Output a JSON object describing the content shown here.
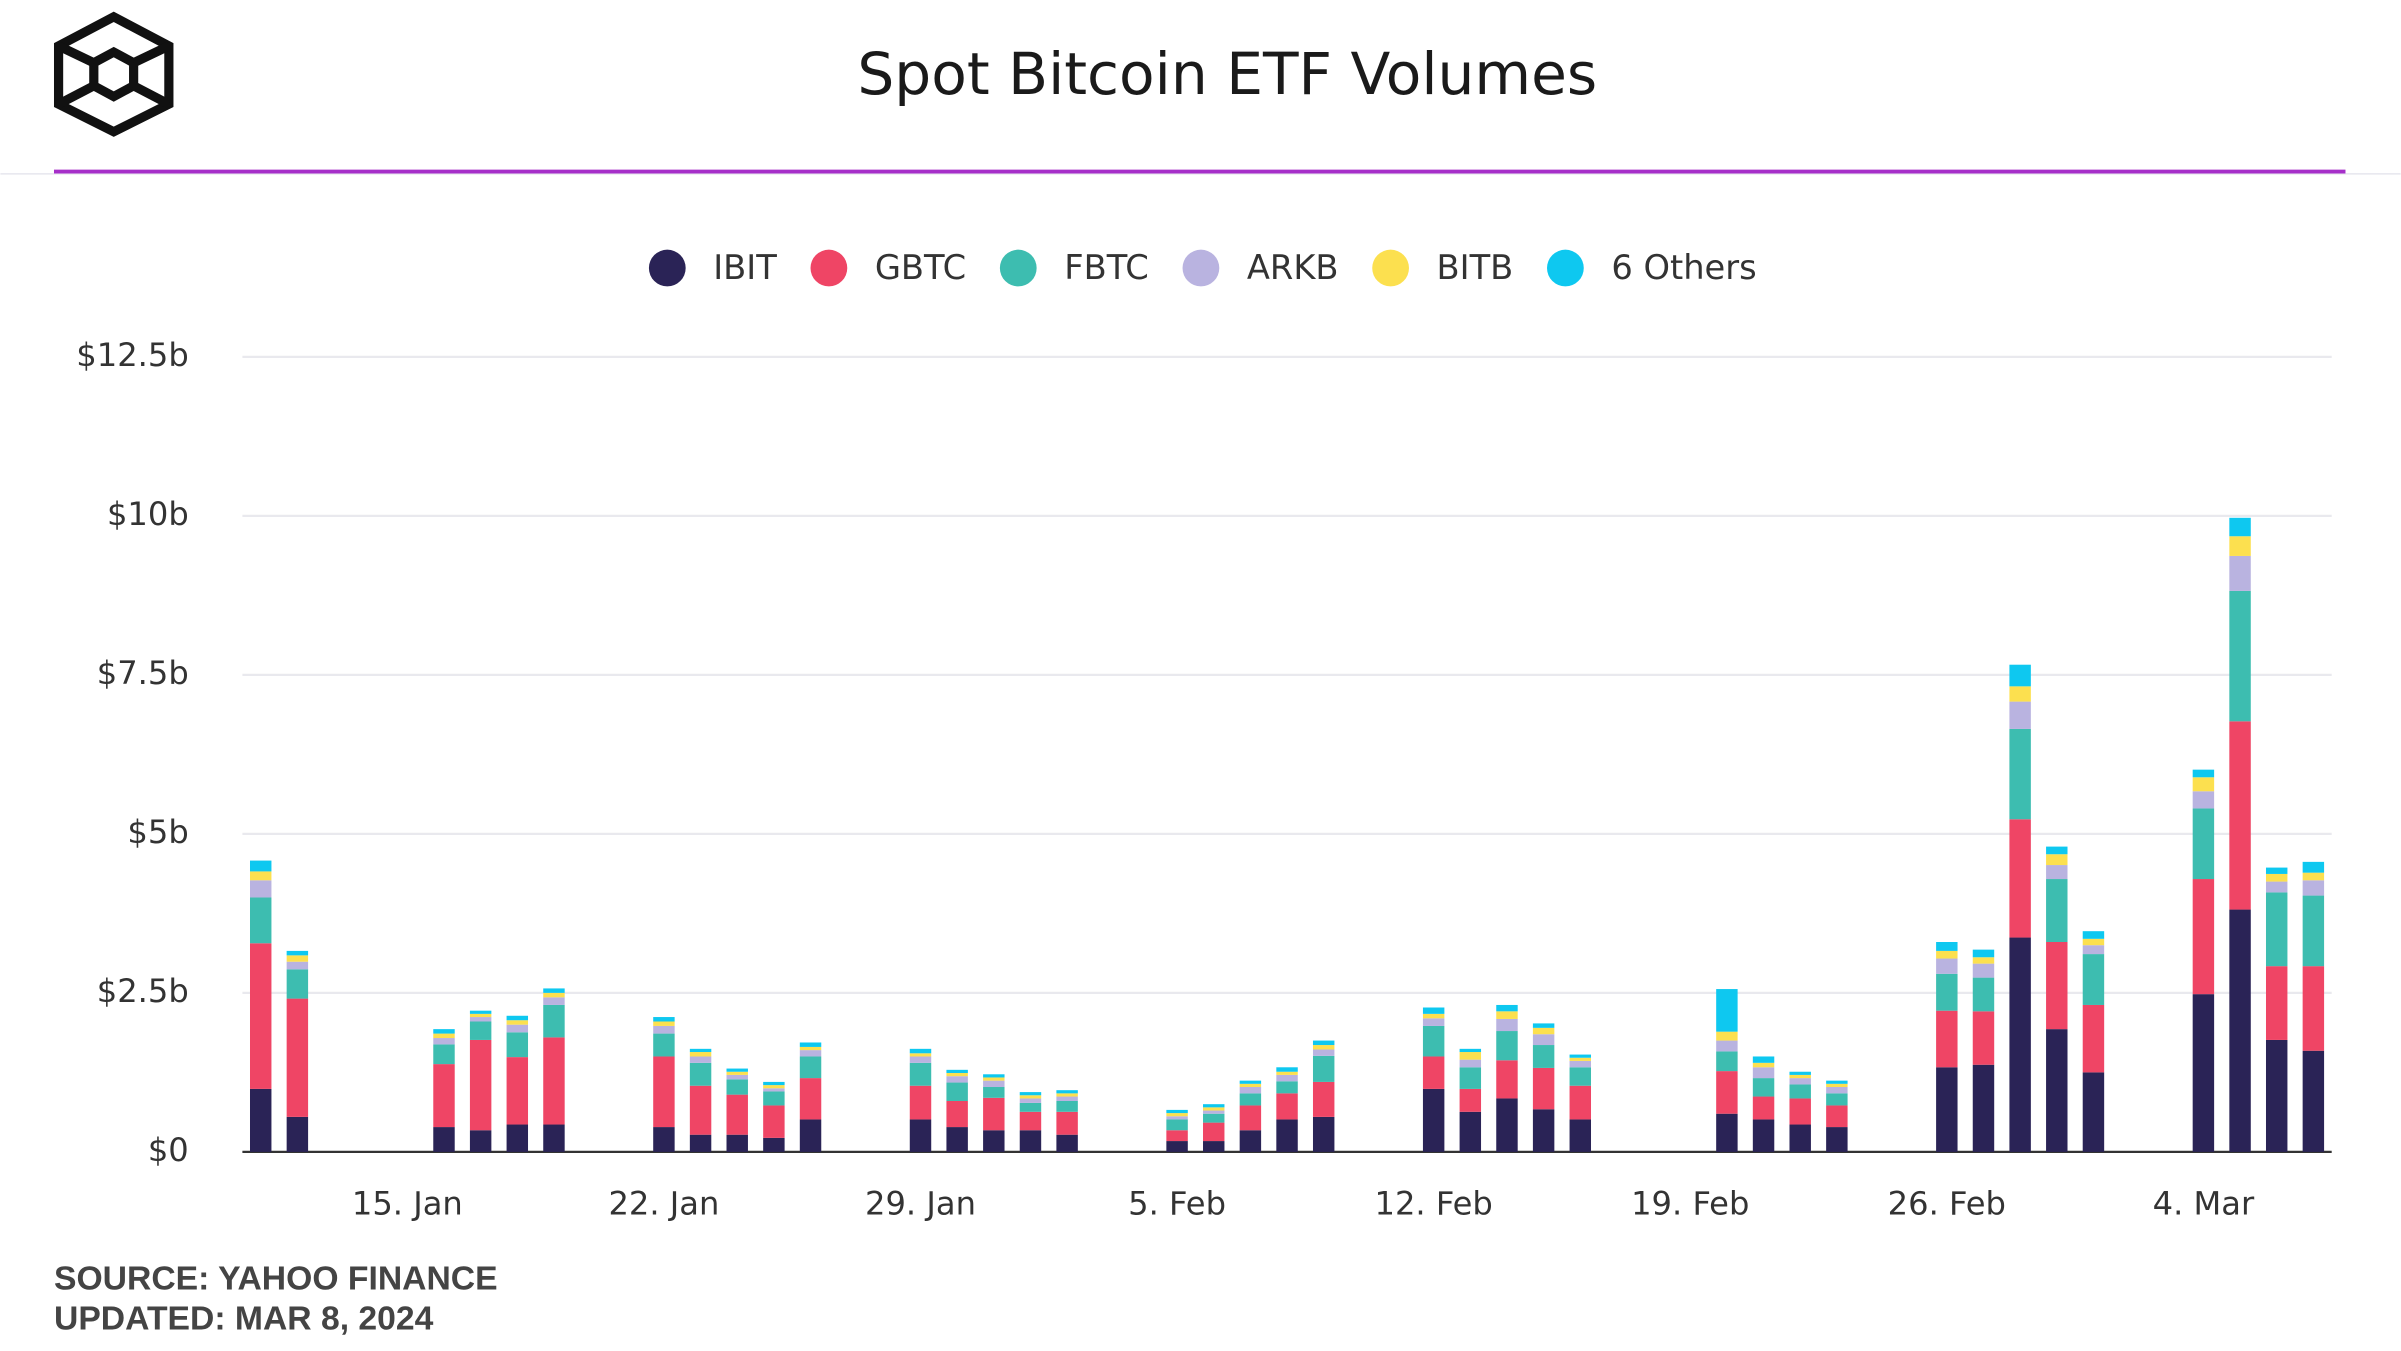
{
  "chart_data": {
    "type": "stacked_bar",
    "title": "Spot Bitcoin ETF Volumes",
    "source": "SOURCE: YAHOO FINANCE",
    "updated": "UPDATED: MAR 8, 2024",
    "categories": [
      null,
      null,
      null,
      null,
      "15. Jan",
      null,
      null,
      null,
      null,
      null,
      null,
      "22. Jan",
      null,
      null,
      null,
      null,
      null,
      null,
      "29. Jan",
      null,
      null,
      null,
      null,
      null,
      null,
      "5. Feb",
      null,
      null,
      null,
      null,
      null,
      null,
      "12. Feb",
      null,
      null,
      null,
      null,
      null,
      null,
      "19. Feb",
      null,
      null,
      null,
      null,
      null,
      null,
      "26. Feb",
      null,
      null,
      null,
      null,
      null,
      null,
      "4. Mar",
      null,
      null,
      null
    ],
    "series": [
      {
        "name": "IBIT",
        "color": "#2a2356",
        "values": [
          0.99,
          0.55,
          null,
          null,
          null,
          0.39,
          0.34,
          0.43,
          0.43,
          null,
          null,
          0.39,
          0.27,
          0.27,
          0.22,
          0.51,
          null,
          null,
          0.51,
          0.39,
          0.34,
          0.34,
          0.27,
          null,
          null,
          0.17,
          0.17,
          0.34,
          0.51,
          0.55,
          null,
          null,
          0.99,
          0.63,
          0.84,
          0.67,
          0.51,
          null,
          null,
          null,
          0.6,
          0.51,
          0.43,
          0.39,
          null,
          null,
          1.33,
          1.37,
          3.37,
          1.93,
          1.25,
          null,
          null,
          2.48,
          3.81,
          1.76,
          1.59
        ]
      },
      {
        "name": "GBTC",
        "color": "#ef4565",
        "values": [
          2.29,
          1.86,
          null,
          null,
          null,
          0.99,
          1.42,
          1.06,
          1.37,
          null,
          null,
          1.11,
          0.77,
          0.63,
          0.51,
          0.65,
          null,
          null,
          0.53,
          0.41,
          0.51,
          0.29,
          0.36,
          null,
          null,
          0.17,
          0.29,
          0.39,
          0.41,
          0.55,
          null,
          null,
          0.51,
          0.36,
          0.6,
          0.65,
          0.53,
          null,
          null,
          null,
          0.67,
          0.36,
          0.41,
          0.34,
          null,
          null,
          0.89,
          0.84,
          1.86,
          1.37,
          1.06,
          null,
          null,
          1.81,
          2.96,
          1.16,
          1.33
        ]
      },
      {
        "name": "FBTC",
        "color": "#3dbdb0",
        "values": [
          0.72,
          0.46,
          null,
          null,
          null,
          0.31,
          0.29,
          0.39,
          0.51,
          null,
          null,
          0.36,
          0.36,
          0.24,
          0.22,
          0.34,
          null,
          null,
          0.36,
          0.29,
          0.17,
          0.14,
          0.17,
          null,
          null,
          0.17,
          0.14,
          0.19,
          0.19,
          0.41,
          null,
          null,
          0.48,
          0.34,
          0.46,
          0.36,
          0.29,
          null,
          null,
          null,
          0.31,
          0.29,
          0.22,
          0.19,
          null,
          null,
          0.58,
          0.53,
          1.42,
          0.99,
          0.8,
          null,
          null,
          1.11,
          2.05,
          1.16,
          1.11
        ]
      },
      {
        "name": "ARKB",
        "color": "#b9b3e0",
        "values": [
          0.27,
          0.12,
          null,
          null,
          null,
          0.1,
          0.07,
          0.12,
          0.12,
          null,
          null,
          0.12,
          0.1,
          0.07,
          0.05,
          0.1,
          null,
          null,
          0.1,
          0.1,
          0.1,
          0.07,
          0.07,
          null,
          null,
          0.05,
          0.05,
          0.1,
          0.1,
          0.1,
          null,
          null,
          0.12,
          0.12,
          0.19,
          0.17,
          0.1,
          null,
          null,
          null,
          0.17,
          0.17,
          0.1,
          0.1,
          null,
          null,
          0.24,
          0.22,
          0.43,
          0.22,
          0.14,
          null,
          null,
          0.27,
          0.55,
          0.17,
          0.24
        ]
      },
      {
        "name": "BITB",
        "color": "#fce04f",
        "values": [
          0.14,
          0.1,
          null,
          null,
          null,
          0.07,
          0.05,
          0.07,
          0.07,
          null,
          null,
          0.07,
          0.07,
          0.05,
          0.05,
          0.05,
          null,
          null,
          0.05,
          0.05,
          0.05,
          0.05,
          0.05,
          null,
          null,
          0.05,
          0.05,
          0.05,
          0.05,
          0.07,
          null,
          null,
          0.07,
          0.12,
          0.12,
          0.1,
          0.05,
          null,
          null,
          null,
          0.14,
          0.07,
          0.05,
          0.05,
          null,
          null,
          0.12,
          0.1,
          0.24,
          0.17,
          0.1,
          null,
          null,
          0.22,
          0.31,
          0.12,
          0.12
        ]
      },
      {
        "name": "6 Others",
        "color": "#0ec8f0",
        "values": [
          0.17,
          0.07,
          null,
          null,
          null,
          0.07,
          0.05,
          0.07,
          0.07,
          null,
          null,
          0.07,
          0.05,
          0.05,
          0.05,
          0.07,
          null,
          null,
          0.07,
          0.05,
          0.05,
          0.05,
          0.05,
          null,
          null,
          0.05,
          0.05,
          0.05,
          0.07,
          0.07,
          null,
          null,
          0.1,
          0.05,
          0.1,
          0.07,
          0.05,
          null,
          null,
          null,
          0.67,
          0.1,
          0.05,
          0.05,
          null,
          null,
          0.14,
          0.12,
          0.34,
          0.12,
          0.12,
          null,
          null,
          0.12,
          0.29,
          0.1,
          0.17
        ]
      }
    ],
    "ylim": [
      0,
      12.5
    ],
    "yticks": [
      {
        "value": 0,
        "label": "$0"
      },
      {
        "value": 2.5,
        "label": "$2.5b"
      },
      {
        "value": 5,
        "label": "$5b"
      },
      {
        "value": 7.5,
        "label": "$7.5b"
      },
      {
        "value": 10,
        "label": "$10b"
      },
      {
        "value": 12.5,
        "label": "$12.5b"
      }
    ],
    "grid": true,
    "legend": "top"
  }
}
